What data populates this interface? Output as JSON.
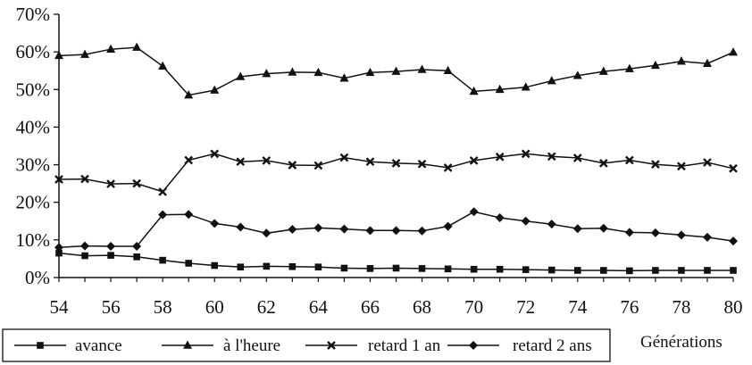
{
  "chart_data": {
    "type": "line",
    "xlabel": "Générations",
    "ylabel": "",
    "ylim": [
      0,
      70
    ],
    "yticks": [
      0,
      10,
      20,
      30,
      40,
      50,
      60,
      70
    ],
    "ytick_labels": [
      "0%",
      "10%",
      "20%",
      "30%",
      "40%",
      "50%",
      "60%",
      "70%"
    ],
    "xlim": [
      54,
      80
    ],
    "xticks": [
      54,
      56,
      58,
      60,
      62,
      64,
      66,
      68,
      70,
      72,
      74,
      76,
      78,
      80
    ],
    "xtick_labels": [
      "54",
      "56",
      "58",
      "60",
      "62",
      "64",
      "66",
      "68",
      "70",
      "72",
      "74",
      "76",
      "78",
      "80"
    ],
    "x": [
      54,
      55,
      56,
      57,
      58,
      59,
      60,
      61,
      62,
      63,
      64,
      65,
      66,
      67,
      68,
      69,
      70,
      71,
      72,
      73,
      74,
      75,
      76,
      77,
      78,
      79,
      80
    ],
    "grid": false,
    "legend_position": "bottom",
    "series": [
      {
        "name": "avance",
        "marker": "square",
        "values": [
          6.5,
          5.8,
          5.9,
          5.5,
          4.6,
          3.8,
          3.2,
          2.8,
          3.0,
          2.9,
          2.8,
          2.5,
          2.4,
          2.5,
          2.4,
          2.3,
          2.2,
          2.2,
          2.1,
          2.0,
          1.9,
          1.9,
          1.8,
          1.9,
          1.9,
          1.9,
          1.9
        ]
      },
      {
        "name": "à l'heure",
        "marker": "triangle",
        "values": [
          59.0,
          59.3,
          60.7,
          61.2,
          56.2,
          48.5,
          49.8,
          53.4,
          54.2,
          54.6,
          54.5,
          53.0,
          54.5,
          54.8,
          55.3,
          55.0,
          49.5,
          50.0,
          50.6,
          52.3,
          53.7,
          54.8,
          55.5,
          56.4,
          57.5,
          56.9,
          59.9
        ]
      },
      {
        "name": "retard 1 an",
        "marker": "cross",
        "values": [
          26.1,
          26.2,
          24.9,
          25.0,
          22.8,
          31.2,
          32.9,
          30.8,
          31.1,
          29.9,
          29.8,
          31.9,
          30.8,
          30.4,
          30.2,
          29.2,
          31.1,
          32.1,
          32.9,
          32.2,
          31.8,
          30.4,
          31.2,
          30.1,
          29.6,
          30.6,
          29.0
        ]
      },
      {
        "name": "retard 2 ans",
        "marker": "diamond",
        "values": [
          8.0,
          8.4,
          8.3,
          8.3,
          16.7,
          16.8,
          14.4,
          13.4,
          11.8,
          12.8,
          13.2,
          12.9,
          12.5,
          12.5,
          12.4,
          13.6,
          17.5,
          15.9,
          15.0,
          14.2,
          13.0,
          13.1,
          12.0,
          11.9,
          11.3,
          10.7,
          9.7
        ]
      }
    ]
  }
}
